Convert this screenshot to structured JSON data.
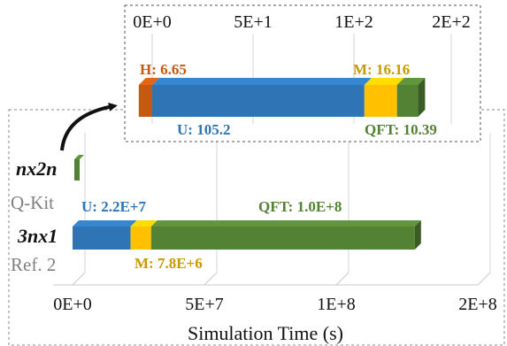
{
  "chart_data": [
    {
      "type": "bar",
      "orientation": "horizontal",
      "stacked": true,
      "categories": [
        "3nx1 (Ref. 2)",
        "nx2n (Q-Kit)"
      ],
      "row_labels": [
        {
          "name": "nx2n",
          "source": "Q-Kit"
        },
        {
          "name": "3nx1",
          "source": "Ref. 2"
        }
      ],
      "series": [
        {
          "name": "H",
          "color": "#c65911",
          "values": [
            null,
            6.65
          ]
        },
        {
          "name": "U",
          "color": "#2e75b6",
          "values": [
            22000000,
            105.2
          ]
        },
        {
          "name": "M",
          "color": "#ffc000",
          "values": [
            7800000,
            16.16
          ]
        },
        {
          "name": "QFT",
          "color": "#548235",
          "values": [
            100000000,
            10.39
          ]
        }
      ],
      "xlabel": "Simulation Time (s)",
      "xlim": [
        0,
        200000000
      ],
      "xticks": [
        "0E+0",
        "5E+7",
        "1E+8",
        "2E+8"
      ],
      "annotations": {
        "U": "U: 2.2E+7",
        "QFT": "QFT: 1.0E+8",
        "M": "M: 7.8E+6"
      }
    },
    {
      "type": "bar",
      "orientation": "horizontal",
      "stacked": true,
      "inset": true,
      "categories": [
        "nx2n (Q-Kit)"
      ],
      "series": [
        {
          "name": "H",
          "color": "#c65911",
          "values": [
            6.65
          ]
        },
        {
          "name": "U",
          "color": "#2e75b6",
          "values": [
            105.2
          ]
        },
        {
          "name": "M",
          "color": "#ffc000",
          "values": [
            16.16
          ]
        },
        {
          "name": "QFT",
          "color": "#548235",
          "values": [
            10.39
          ]
        }
      ],
      "xlim": [
        0,
        200
      ],
      "xticks": [
        "0E+0",
        "5E+1",
        "1E+2",
        "2E+2"
      ],
      "annotations": {
        "H": "H: 6.65",
        "M": "M: 16.16",
        "U": "U: 105.2",
        "QFT": "QFT: 10.39"
      }
    }
  ]
}
